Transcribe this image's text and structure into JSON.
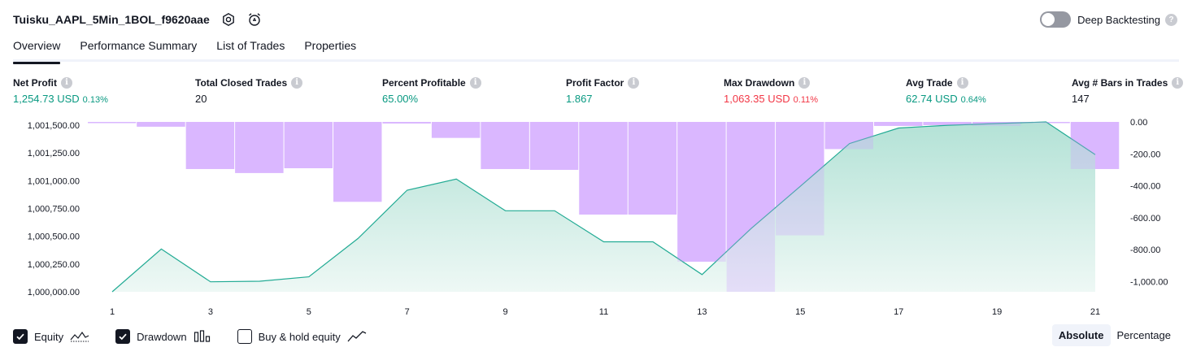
{
  "header": {
    "title": "Tuisku_AAPL_5Min_1BOL_f9620aae",
    "settings_icon": "hexagon-gear-icon",
    "alert_icon": "alarm-clock-add-icon"
  },
  "deep_backtesting": {
    "label": "Deep Backtesting",
    "enabled": false,
    "help": "?"
  },
  "tabs": [
    {
      "label": "Overview",
      "active": true
    },
    {
      "label": "Performance Summary",
      "active": false
    },
    {
      "label": "List of Trades",
      "active": false
    },
    {
      "label": "Properties",
      "active": false
    }
  ],
  "metrics": [
    {
      "label": "Net Profit",
      "value": "1,254.73 USD",
      "pct": "0.13%",
      "color": "pos"
    },
    {
      "label": "Total Closed Trades",
      "value": "20",
      "pct": "",
      "color": "plain"
    },
    {
      "label": "Percent Profitable",
      "value": "65.00%",
      "pct": "",
      "color": "pos"
    },
    {
      "label": "Profit Factor",
      "value": "1.867",
      "pct": "",
      "color": "pos"
    },
    {
      "label": "Max Drawdown",
      "value": "1,063.35 USD",
      "pct": "0.11%",
      "color": "neg"
    },
    {
      "label": "Avg Trade",
      "value": "62.74 USD",
      "pct": "0.64%",
      "color": "pos"
    },
    {
      "label": "Avg # Bars in Trades",
      "value": "147",
      "pct": "",
      "color": "plain"
    }
  ],
  "info_glyph": "i",
  "colors": {
    "equity_line": "#22ab94",
    "equity_fill_top": "#b3e2d6",
    "equity_fill_bottom": "#eef8f5",
    "drawdown_bar": "#cc99ff",
    "positive": "#089981",
    "negative": "#f23645"
  },
  "chart_data": {
    "type": "area",
    "x": [
      1,
      2,
      3,
      4,
      5,
      6,
      7,
      8,
      9,
      10,
      11,
      12,
      13,
      14,
      15,
      16,
      17,
      18,
      19,
      20,
      21
    ],
    "x_tick_labels": [
      "1",
      "3",
      "5",
      "7",
      "9",
      "11",
      "13",
      "15",
      "17",
      "19",
      "21"
    ],
    "left_axis_ticks": [
      "1,001,500.00",
      "1,001,250.00",
      "1,001,000.00",
      "1,000,750.00",
      "1,000,500.00",
      "1,000,250.00",
      "1,000,000.00"
    ],
    "left_axis_values": [
      1001500,
      1001250,
      1001000,
      1000750,
      1000500,
      1000250,
      1000000
    ],
    "right_axis_ticks": [
      "0.00",
      "-200.00",
      "-400.00",
      "-600.00",
      "-800.00",
      "-1,000.00"
    ],
    "right_axis_values": [
      0,
      -200,
      -400,
      -600,
      -800,
      -1000
    ],
    "ylim_left": [
      1000000,
      1001530
    ],
    "ylim_right": [
      -1063.35,
      0
    ],
    "series": [
      {
        "name": "Equity",
        "axis": "left",
        "values": [
          1000000,
          1000385,
          1000090,
          1000095,
          1000135,
          1000480,
          1000915,
          1001015,
          1000730,
          1000730,
          1000450,
          1000450,
          1000155,
          1000570,
          1000950,
          1001335,
          1001475,
          1001500,
          1001515,
          1001530,
          1001235
        ]
      },
      {
        "name": "Drawdown",
        "axis": "right",
        "values": [
          -5,
          -30,
          -295,
          -320,
          -290,
          -500,
          -10,
          -100,
          -295,
          -300,
          -580,
          -580,
          -875,
          -1063.35,
          -710,
          -170,
          -25,
          -20,
          -25,
          -5,
          -295
        ]
      }
    ],
    "legend": [
      {
        "label": "Equity",
        "checked": true,
        "icon": "equity-wave-icon"
      },
      {
        "label": "Drawdown",
        "checked": true,
        "icon": "drawdown-bars-icon"
      },
      {
        "label": "Buy & hold equity",
        "checked": false,
        "icon": "buy-hold-line-icon"
      }
    ],
    "grid": false
  },
  "mode": {
    "options": [
      "Absolute",
      "Percentage"
    ],
    "selected": "Absolute"
  }
}
